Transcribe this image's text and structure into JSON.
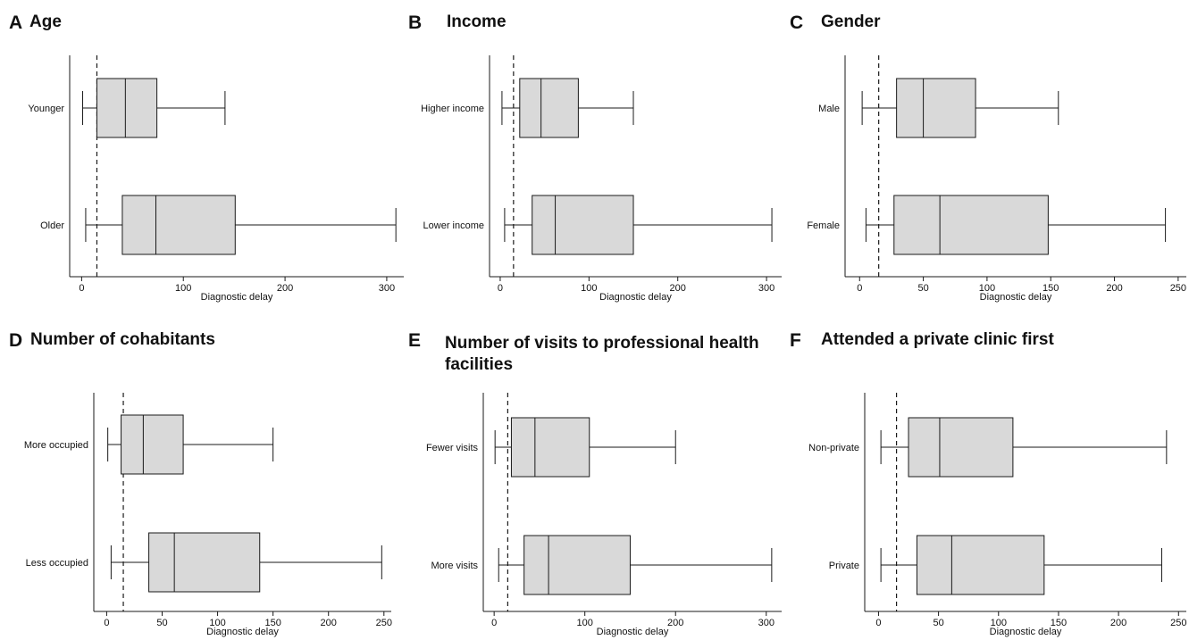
{
  "chart_data": [
    {
      "type": "boxplot",
      "panel": "A",
      "title": "Age",
      "title2": "",
      "xlabel": "Diagnostic delay",
      "xlim": [
        -10,
        315
      ],
      "xticks": [
        0,
        100,
        200,
        300
      ],
      "reference_line": 15,
      "series": [
        {
          "name": "Younger",
          "whisker_low": 1,
          "q1": 15,
          "median": 43,
          "q3": 74,
          "whisker_high": 141
        },
        {
          "name": "Older",
          "whisker_low": 4,
          "q1": 40,
          "median": 73,
          "q3": 151,
          "whisker_high": 309
        }
      ]
    },
    {
      "type": "boxplot",
      "panel": "B",
      "title": "Income",
      "title2": "",
      "xlabel": "Diagnostic delay",
      "xlim": [
        -10,
        315
      ],
      "xticks": [
        0,
        100,
        200,
        300
      ],
      "reference_line": 15,
      "series": [
        {
          "name": "Higher income",
          "whisker_low": 2,
          "q1": 22,
          "median": 46,
          "q3": 88,
          "whisker_high": 150
        },
        {
          "name": "Lower income",
          "whisker_low": 5,
          "q1": 36,
          "median": 62,
          "q3": 150,
          "whisker_high": 306
        }
      ]
    },
    {
      "type": "boxplot",
      "panel": "C",
      "title": "Gender",
      "title2": "",
      "xlabel": "Diagnostic delay",
      "xlim": [
        -10,
        255
      ],
      "xticks": [
        0,
        50,
        100,
        150,
        200,
        250
      ],
      "reference_line": 15,
      "series": [
        {
          "name": "Male",
          "whisker_low": 2,
          "q1": 29,
          "median": 50,
          "q3": 91,
          "whisker_high": 156
        },
        {
          "name": "Female",
          "whisker_low": 5,
          "q1": 27,
          "median": 63,
          "q3": 148,
          "whisker_high": 240
        }
      ]
    },
    {
      "type": "boxplot",
      "panel": "D",
      "title": "Number of cohabitants",
      "title2": "",
      "xlabel": "Diagnostic delay",
      "xlim": [
        -10,
        255
      ],
      "xticks": [
        0,
        50,
        100,
        150,
        200,
        250
      ],
      "reference_line": 15,
      "series": [
        {
          "name": "More occupied",
          "whisker_low": 1,
          "q1": 13,
          "median": 33,
          "q3": 69,
          "whisker_high": 150
        },
        {
          "name": "Less occupied",
          "whisker_low": 4,
          "q1": 38,
          "median": 61,
          "q3": 138,
          "whisker_high": 248
        }
      ]
    },
    {
      "type": "boxplot",
      "panel": "E",
      "title": "Number of visits to professional health",
      "title2": "facilities",
      "xlabel": "Diagnostic delay",
      "xlim": [
        -10,
        315
      ],
      "xticks": [
        0,
        100,
        200,
        300
      ],
      "reference_line": 15,
      "series": [
        {
          "name": "Fewer visits",
          "whisker_low": 1,
          "q1": 19,
          "median": 45,
          "q3": 105,
          "whisker_high": 200
        },
        {
          "name": "More visits",
          "whisker_low": 5,
          "q1": 33,
          "median": 60,
          "q3": 150,
          "whisker_high": 306
        }
      ]
    },
    {
      "type": "boxplot",
      "panel": "F",
      "title": "Attended a private clinic first",
      "title2": "",
      "xlabel": "Diagnostic delay",
      "xlim": [
        -10,
        255
      ],
      "xticks": [
        0,
        50,
        100,
        150,
        200,
        250
      ],
      "reference_line": 15,
      "series": [
        {
          "name": "Non-private",
          "whisker_low": 2,
          "q1": 25,
          "median": 51,
          "q3": 112,
          "whisker_high": 240
        },
        {
          "name": "Private",
          "whisker_low": 2,
          "q1": 32,
          "median": 61,
          "q3": 138,
          "whisker_high": 236
        }
      ]
    }
  ],
  "colors": {
    "box_fill": "#d9d9d9",
    "stroke": "#1a1a1a"
  }
}
